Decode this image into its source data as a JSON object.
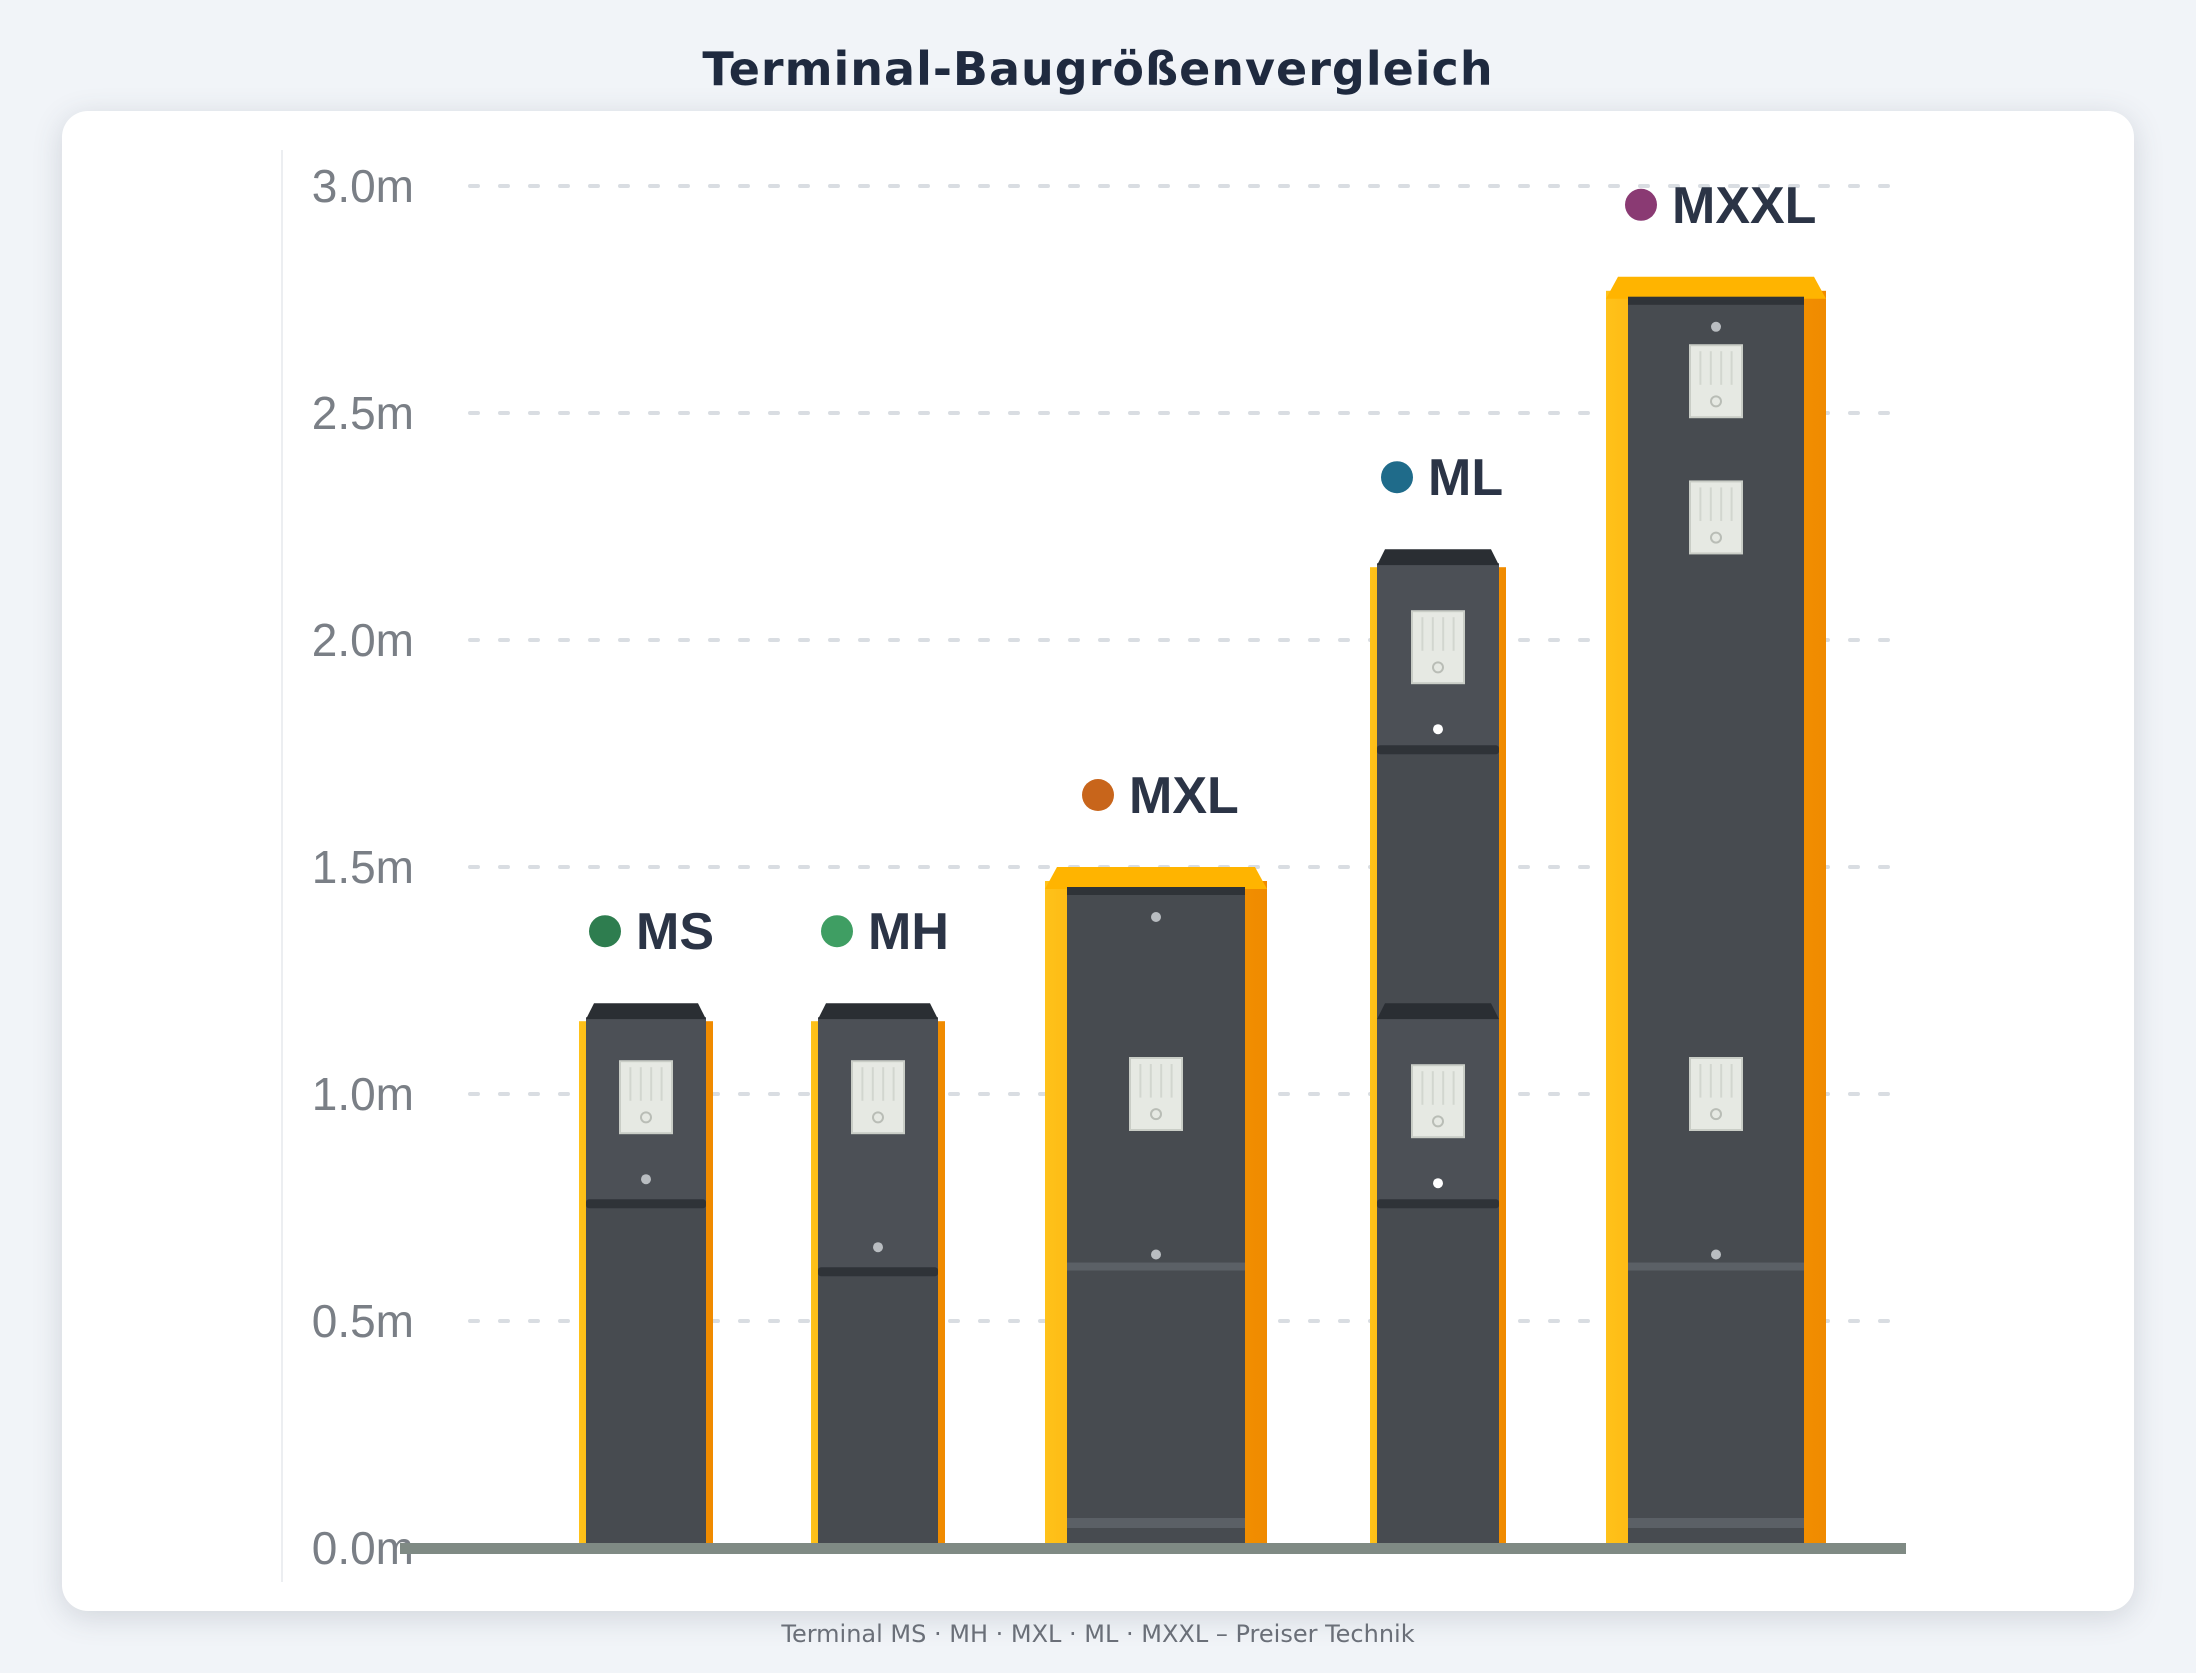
{
  "page": {
    "title": "Terminal-Baugrößenvergleich",
    "footer": "Terminal MS · MH · MXL · ML · MXXL – Preiser Technik"
  },
  "chart_data": {
    "type": "bar",
    "title": "Terminal-Baugrößenvergleich",
    "xlabel": "",
    "ylabel": "",
    "unit": "m",
    "ylim": [
      0,
      3.0
    ],
    "yticks": [
      "0.0m",
      "0.5m",
      "1.0m",
      "1.5m",
      "2.0m",
      "2.5m",
      "3.0m"
    ],
    "ytick_values": [
      0,
      0.5,
      1.0,
      1.5,
      2.0,
      2.5,
      3.0
    ],
    "grid": true,
    "categories": [
      "MS",
      "MH",
      "MXL",
      "ML",
      "MXXL"
    ],
    "values": [
      1.2,
      1.2,
      1.5,
      2.2,
      2.8
    ],
    "colors": [
      "#2e7d4f",
      "#3f9e63",
      "#c8651b",
      "#1f6b8a",
      "#8a3a73"
    ],
    "frame_color": "#ffb400",
    "body_color": "#474b50"
  }
}
